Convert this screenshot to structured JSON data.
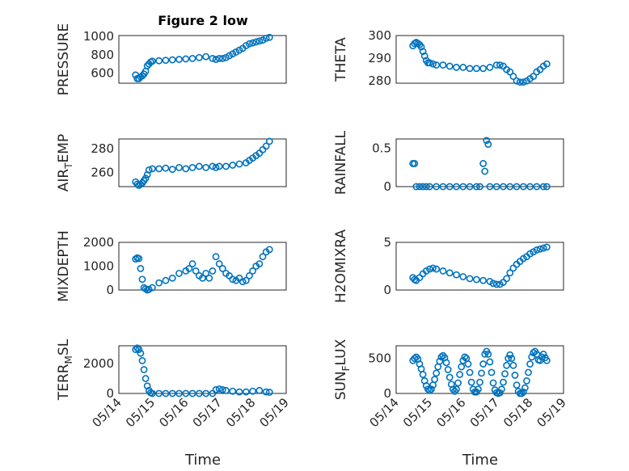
{
  "figure": {
    "title": "Figure 2 low",
    "marker_color": "#0072bd"
  },
  "chart_data": [
    {
      "type": "scatter",
      "ylabel": "PRESSURE",
      "ylim": [
        490,
        1010
      ],
      "yticks": [
        600,
        800,
        1000
      ],
      "x_tick_labels": [
        "05/14",
        "05/15",
        "05/16",
        "05/17",
        "05/18",
        "05/19"
      ],
      "xlim": [
        0,
        5
      ],
      "x": [
        0.5,
        0.55,
        0.6,
        0.65,
        0.7,
        0.75,
        0.8,
        0.85,
        0.9,
        0.95,
        1.0,
        1.2,
        1.4,
        1.6,
        1.8,
        2.0,
        2.2,
        2.4,
        2.6,
        2.8,
        2.9,
        3.0,
        3.1,
        3.2,
        3.3,
        3.4,
        3.5,
        3.6,
        3.7,
        3.8,
        3.9,
        4.0,
        4.1,
        4.2,
        4.3,
        4.4,
        4.5
      ],
      "y": [
        580,
        540,
        540,
        560,
        570,
        590,
        620,
        680,
        700,
        720,
        730,
        735,
        740,
        745,
        750,
        755,
        760,
        770,
        780,
        760,
        750,
        760,
        760,
        770,
        790,
        810,
        830,
        850,
        870,
        900,
        920,
        930,
        940,
        950,
        960,
        980,
        990
      ]
    },
    {
      "type": "scatter",
      "ylabel": "THETA",
      "ylim": [
        279,
        300
      ],
      "yticks": [
        280,
        290,
        300
      ],
      "x_tick_labels": [
        "05/14",
        "05/15",
        "05/16",
        "05/17",
        "05/18",
        "05/19"
      ],
      "xlim": [
        0,
        5
      ],
      "x": [
        0.5,
        0.55,
        0.6,
        0.65,
        0.7,
        0.75,
        0.8,
        0.85,
        0.9,
        0.95,
        1.0,
        1.1,
        1.2,
        1.4,
        1.6,
        1.8,
        2.0,
        2.2,
        2.4,
        2.6,
        2.8,
        3.0,
        3.1,
        3.2,
        3.3,
        3.4,
        3.5,
        3.6,
        3.7,
        3.8,
        3.9,
        4.0,
        4.1,
        4.2,
        4.3,
        4.4,
        4.5
      ],
      "y": [
        295.5,
        296.5,
        297,
        296.5,
        296,
        295,
        293,
        291,
        289,
        288,
        288,
        287.5,
        287,
        287,
        286.5,
        286,
        286,
        285.5,
        285.5,
        285.5,
        286,
        287,
        287,
        286.5,
        285,
        284,
        282,
        280,
        279.5,
        279.5,
        280,
        281,
        282,
        284,
        285,
        286.5,
        287.5
      ]
    },
    {
      "type": "scatter",
      "ylabel": "AIR_TEMP",
      "ylim": [
        248,
        288
      ],
      "yticks": [
        260,
        280
      ],
      "x_tick_labels": [
        "05/14",
        "05/15",
        "05/16",
        "05/17",
        "05/18",
        "05/19"
      ],
      "xlim": [
        0,
        5
      ],
      "x": [
        0.5,
        0.55,
        0.6,
        0.65,
        0.7,
        0.75,
        0.8,
        0.85,
        0.9,
        1.0,
        1.2,
        1.4,
        1.6,
        1.8,
        2.0,
        2.2,
        2.4,
        2.6,
        2.8,
        2.9,
        3.0,
        3.2,
        3.4,
        3.6,
        3.8,
        3.9,
        4.0,
        4.1,
        4.2,
        4.3,
        4.4,
        4.5
      ],
      "y": [
        252,
        250,
        249,
        250,
        251,
        253,
        255,
        258,
        262,
        263,
        263,
        263.5,
        262.5,
        264,
        263,
        264,
        265,
        264,
        265,
        264,
        265,
        265,
        266,
        267,
        268,
        270,
        272,
        274,
        276,
        279,
        282,
        286
      ]
    },
    {
      "type": "scatter",
      "ylabel": "RAINFALL",
      "ylim": [
        0,
        0.62
      ],
      "yticks": [
        0,
        0.5
      ],
      "x_tick_labels": [
        "05/14",
        "05/15",
        "05/16",
        "05/17",
        "05/18",
        "05/19"
      ],
      "xlim": [
        0,
        5
      ],
      "x": [
        0.5,
        0.55,
        0.6,
        0.7,
        0.8,
        0.9,
        1.0,
        1.2,
        1.4,
        1.6,
        1.8,
        2.0,
        2.2,
        2.4,
        2.5,
        2.6,
        2.65,
        2.7,
        2.75,
        2.8,
        3.0,
        3.2,
        3.4,
        3.6,
        3.8,
        4.0,
        4.2,
        4.4,
        4.5
      ],
      "y": [
        0.3,
        0.3,
        0,
        0,
        0,
        0,
        0,
        0,
        0,
        0,
        0,
        0,
        0,
        0,
        0,
        0.3,
        0.2,
        0.6,
        0.55,
        0,
        0,
        0,
        0,
        0,
        0,
        0,
        0,
        0,
        0
      ]
    },
    {
      "type": "scatter",
      "ylabel": "MIXDEPTH",
      "ylim": [
        0,
        2000
      ],
      "yticks": [
        0,
        1000,
        2000
      ],
      "x_tick_labels": [
        "05/14",
        "05/15",
        "05/16",
        "05/17",
        "05/18",
        "05/19"
      ],
      "xlim": [
        0,
        5
      ],
      "x": [
        0.5,
        0.55,
        0.6,
        0.65,
        0.7,
        0.75,
        0.8,
        0.85,
        0.9,
        1.0,
        1.2,
        1.4,
        1.6,
        1.8,
        2.0,
        2.1,
        2.2,
        2.3,
        2.4,
        2.5,
        2.6,
        2.7,
        2.8,
        2.9,
        3.0,
        3.1,
        3.2,
        3.3,
        3.4,
        3.5,
        3.6,
        3.7,
        3.8,
        3.9,
        4.0,
        4.1,
        4.2,
        4.3,
        4.4,
        4.5
      ],
      "y": [
        1300,
        1350,
        1320,
        900,
        450,
        100,
        50,
        0,
        30,
        100,
        300,
        400,
        500,
        700,
        800,
        900,
        1100,
        800,
        600,
        500,
        700,
        500,
        800,
        1400,
        1100,
        900,
        700,
        600,
        450,
        400,
        500,
        350,
        400,
        600,
        800,
        1000,
        1100,
        1400,
        1600,
        1700
      ]
    },
    {
      "type": "scatter",
      "ylabel": "H2OMIXRA",
      "ylim": [
        0,
        5
      ],
      "yticks": [
        0,
        5
      ],
      "x_tick_labels": [
        "05/14",
        "05/15",
        "05/16",
        "05/17",
        "05/18",
        "05/19"
      ],
      "xlim": [
        0,
        5
      ],
      "x": [
        0.5,
        0.55,
        0.6,
        0.7,
        0.8,
        0.9,
        1.0,
        1.1,
        1.2,
        1.4,
        1.6,
        1.8,
        2.0,
        2.2,
        2.4,
        2.6,
        2.8,
        2.9,
        3.0,
        3.1,
        3.2,
        3.3,
        3.4,
        3.5,
        3.6,
        3.7,
        3.8,
        3.9,
        4.0,
        4.1,
        4.2,
        4.3,
        4.4,
        4.5
      ],
      "y": [
        1.3,
        1.1,
        1.0,
        1.3,
        1.7,
        2.0,
        2.2,
        2.3,
        2.2,
        2.0,
        1.8,
        1.6,
        1.4,
        1.2,
        1.1,
        1.0,
        0.9,
        0.7,
        0.6,
        0.6,
        0.8,
        1.2,
        1.8,
        2.3,
        2.7,
        3.0,
        3.3,
        3.5,
        3.8,
        4.0,
        4.2,
        4.3,
        4.4,
        4.5
      ]
    },
    {
      "type": "scatter",
      "ylabel": "TERR_MSL",
      "ylim": [
        0,
        3200
      ],
      "yticks": [
        0,
        2000
      ],
      "x_tick_labels": [
        "05/14",
        "05/15",
        "05/16",
        "05/17",
        "05/18",
        "05/19"
      ],
      "xlim": [
        0,
        5
      ],
      "x": [
        0.5,
        0.55,
        0.6,
        0.65,
        0.7,
        0.75,
        0.8,
        0.85,
        0.9,
        0.95,
        1.0,
        1.2,
        1.4,
        1.6,
        1.8,
        2.0,
        2.2,
        2.4,
        2.6,
        2.8,
        2.9,
        3.0,
        3.1,
        3.2,
        3.4,
        3.6,
        3.8,
        4.0,
        4.2,
        4.4,
        4.5
      ],
      "y": [
        2950,
        3050,
        2950,
        2700,
        2200,
        1600,
        1000,
        500,
        200,
        50,
        0,
        0,
        0,
        0,
        0,
        0,
        0,
        0,
        0,
        0,
        250,
        300,
        250,
        200,
        150,
        100,
        100,
        150,
        200,
        100,
        80
      ]
    },
    {
      "type": "scatter",
      "ylabel": "SUN_FLUX",
      "ylim": [
        0,
        680
      ],
      "yticks": [
        0,
        500
      ],
      "x_tick_labels": [
        "05/14",
        "05/15",
        "05/16",
        "05/17",
        "05/18",
        "05/19"
      ],
      "xlim": [
        0,
        5
      ],
      "x": [
        0.5,
        0.55,
        0.6,
        0.65,
        0.7,
        0.75,
        0.8,
        0.85,
        0.9,
        0.95,
        1.0,
        1.05,
        1.1,
        1.15,
        1.2,
        1.25,
        1.3,
        1.35,
        1.4,
        1.45,
        1.5,
        1.55,
        1.6,
        1.65,
        1.7,
        1.75,
        1.8,
        1.85,
        1.9,
        1.95,
        2.0,
        2.05,
        2.1,
        2.15,
        2.2,
        2.25,
        2.3,
        2.35,
        2.4,
        2.45,
        2.5,
        2.55,
        2.6,
        2.65,
        2.7,
        2.75,
        2.8,
        2.85,
        2.9,
        2.95,
        3.0,
        3.05,
        3.1,
        3.15,
        3.2,
        3.25,
        3.3,
        3.35,
        3.4,
        3.45,
        3.5,
        3.55,
        3.6,
        3.65,
        3.7,
        3.75,
        3.8,
        3.85,
        3.9,
        3.95,
        4.0,
        4.05,
        4.1,
        4.15,
        4.2,
        4.25,
        4.3,
        4.35,
        4.4,
        4.45,
        4.5
      ],
      "y": [
        470,
        500,
        520,
        490,
        420,
        350,
        270,
        180,
        110,
        60,
        40,
        60,
        120,
        200,
        290,
        380,
        460,
        520,
        540,
        510,
        440,
        340,
        230,
        130,
        60,
        30,
        60,
        150,
        270,
        380,
        470,
        520,
        500,
        420,
        300,
        160,
        60,
        20,
        20,
        60,
        160,
        290,
        420,
        560,
        600,
        560,
        450,
        300,
        150,
        50,
        10,
        0,
        10,
        60,
        160,
        280,
        400,
        500,
        550,
        500,
        400,
        260,
        120,
        30,
        0,
        0,
        20,
        80,
        180,
        300,
        420,
        520,
        580,
        600,
        560,
        480,
        470,
        520,
        560,
        510,
        470
      ]
    }
  ]
}
